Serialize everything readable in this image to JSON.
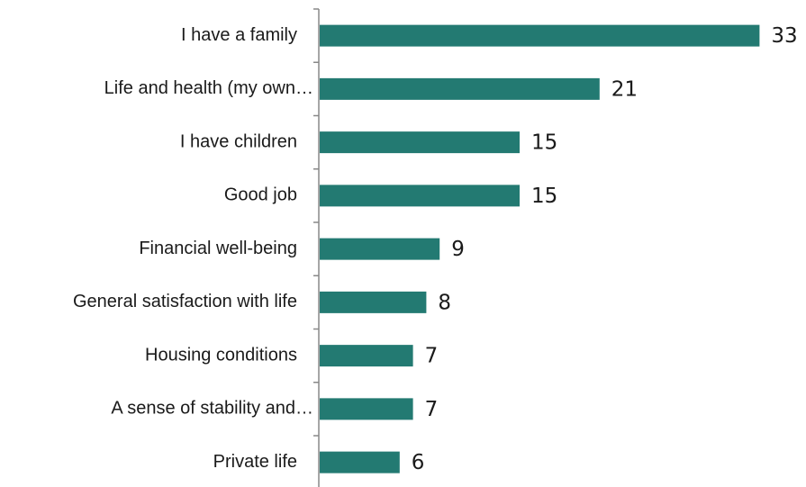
{
  "chart_data": {
    "type": "bar",
    "orientation": "horizontal",
    "categories": [
      "I have a family",
      "Life and health (my own…",
      "I have children",
      "Good job",
      "Financial well-being",
      "General satisfaction with life",
      "Housing conditions",
      "A sense of stability and…",
      "Private life"
    ],
    "values": [
      33,
      21,
      15,
      15,
      9,
      8,
      7,
      7,
      6
    ],
    "color": "#237a72"
  }
}
